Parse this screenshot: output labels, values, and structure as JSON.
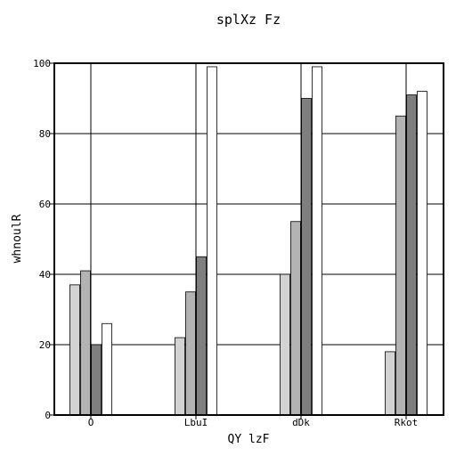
{
  "chart_data": {
    "type": "bar",
    "title": "splXz Fz",
    "xlabel": "QY lzF",
    "ylabel": "whnoulR",
    "categories": [
      "O",
      "LbuI",
      "dDk",
      "Rkot"
    ],
    "ylim": [
      0,
      100
    ],
    "yticks": [
      0,
      20,
      40,
      60,
      80,
      100
    ],
    "grid": true,
    "series": [
      {
        "values": [
          37,
          22,
          40,
          18
        ],
        "color": "#d3d3d3"
      },
      {
        "values": [
          41,
          35,
          55,
          85
        ],
        "color": "#b3b3b3"
      },
      {
        "values": [
          20,
          45,
          90,
          91
        ],
        "color": "#7f7f7f"
      },
      {
        "values": [
          26,
          99,
          99,
          92
        ],
        "color": "#ffffff"
      }
    ]
  }
}
